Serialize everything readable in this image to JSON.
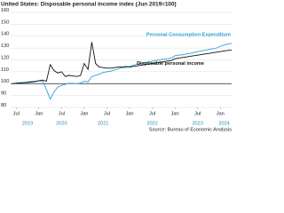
{
  "chart_data": {
    "type": "line",
    "title": "United States: Disposable personal income index (Jun 2019=100)",
    "source": "Source: Bureau of Economic Analysis",
    "x": [
      "2019-06",
      "2019-07",
      "2019-08",
      "2019-09",
      "2019-10",
      "2019-11",
      "2019-12",
      "2020-01",
      "2020-02",
      "2020-03",
      "2020-04",
      "2020-05",
      "2020-06",
      "2020-07",
      "2020-08",
      "2020-09",
      "2020-10",
      "2020-11",
      "2020-12",
      "2021-01",
      "2021-02",
      "2021-03",
      "2021-04",
      "2021-05",
      "2021-06",
      "2021-07",
      "2021-08",
      "2021-09",
      "2021-10",
      "2021-11",
      "2021-12",
      "2022-01",
      "2022-02",
      "2022-03",
      "2022-04",
      "2022-05",
      "2022-06",
      "2022-07",
      "2022-08",
      "2022-09",
      "2022-10",
      "2022-11",
      "2022-12",
      "2023-01",
      "2023-02",
      "2023-03",
      "2023-04",
      "2023-05",
      "2023-06",
      "2023-07",
      "2023-08",
      "2023-09",
      "2023-10",
      "2023-11",
      "2023-12",
      "2024-01",
      "2024-02",
      "2024-03",
      "2024-04"
    ],
    "xticks": [
      {
        "value": "2019-07",
        "label": "Jul"
      },
      {
        "value": "2020-01",
        "label": "Jan"
      },
      {
        "value": "2020-07",
        "label": "Jul"
      },
      {
        "value": "2021-01",
        "label": "Jan"
      },
      {
        "value": "2021-07",
        "label": "Jul"
      },
      {
        "value": "2022-01",
        "label": "Jan"
      },
      {
        "value": "2022-07",
        "label": "Jul"
      },
      {
        "value": "2023-01",
        "label": "Jan"
      },
      {
        "value": "2023-07",
        "label": "Jul"
      },
      {
        "value": "2024-01",
        "label": "Jan"
      }
    ],
    "year_labels": [
      {
        "value": "2019-10",
        "label": "2019"
      },
      {
        "value": "2020-07",
        "label": "2020"
      },
      {
        "value": "2021-06",
        "label": "2021"
      },
      {
        "value": "2022-07",
        "label": "2022"
      },
      {
        "value": "2023-07",
        "label": "2023"
      },
      {
        "value": "2024-02",
        "label": "2024"
      }
    ],
    "ylim": [
      80,
      160
    ],
    "yticks": [
      80,
      90,
      100,
      110,
      120,
      130,
      140,
      150,
      160
    ],
    "baseline": 100,
    "grid": true,
    "series": [
      {
        "name": "Personal Consumption Expenditure",
        "color": "#29a3d9",
        "values": [
          100,
          100.4,
          100.8,
          101.1,
          101.4,
          101.8,
          102.1,
          102.4,
          102,
          95,
          87,
          93,
          97,
          98.5,
          99.5,
          100.3,
          100.2,
          100,
          100.5,
          102,
          101.5,
          106,
          107,
          108,
          109.5,
          110,
          110.5,
          111.5,
          112.5,
          113.5,
          113.5,
          114.5,
          115.5,
          116.5,
          117,
          117.8,
          118.5,
          118.8,
          119.5,
          120,
          120.8,
          121,
          121.5,
          123.5,
          124,
          124.3,
          125,
          125.5,
          126.2,
          127,
          127.6,
          128.2,
          128.8,
          129.3,
          130,
          131.5,
          132.5,
          133.3,
          134
        ]
      },
      {
        "name": "Disposable personal income",
        "color": "#111111",
        "values": [
          100,
          100.3,
          100.6,
          100.8,
          101,
          101.3,
          101.6,
          102.5,
          103,
          102,
          116,
          111,
          109,
          110,
          106,
          107,
          106.5,
          106,
          106.8,
          117,
          112,
          135,
          117,
          114,
          113.5,
          113,
          113,
          113.5,
          114,
          114,
          114.5,
          114,
          114.5,
          115,
          115.5,
          116,
          116.5,
          117,
          117.5,
          118,
          118.5,
          119,
          119.5,
          121,
          121.5,
          122,
          122.5,
          123,
          123.5,
          124,
          124.5,
          125,
          125.5,
          126,
          126.5,
          127,
          127.5,
          128,
          128.3
        ]
      }
    ]
  }
}
